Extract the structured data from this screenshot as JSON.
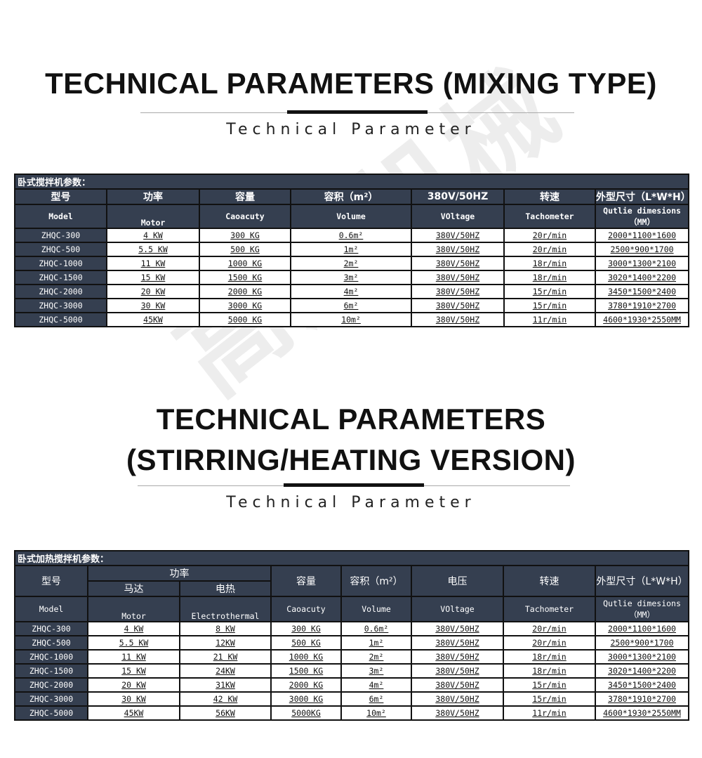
{
  "watermark": "高欣机械",
  "section1": {
    "title": "TECHNICAL PARAMETERS (MIXING TYPE)",
    "subtitle": "Technical Parameter",
    "table": {
      "caption": "卧式搅拌机参数：",
      "headers_cn": [
        "型号",
        "功率",
        "容量",
        "容积（m²）",
        "380V/50HZ",
        "转速",
        "外型尺寸（L*W*H）"
      ],
      "headers_en": [
        "Model",
        "Motor",
        "Caoacuty",
        "Volume",
        "VOltage",
        "Tachometer",
        "Qutlie dimesions（MM）"
      ],
      "rows": [
        [
          "ZHQC-300",
          "4 KW",
          "300 KG",
          "0.6m²",
          "380V/50HZ",
          "20r/min",
          "2000*1100*1600"
        ],
        [
          "ZHQC-500",
          "5.5 KW",
          "500 KG",
          "1m²",
          "380V/50HZ",
          "20r/min",
          "2500*900*1700"
        ],
        [
          "ZHQC-1000",
          "11 KW",
          "1000 KG",
          "2m²",
          "380V/50HZ",
          "18r/min",
          "3000*1300*2100"
        ],
        [
          "ZHQC-1500",
          "15 KW",
          "1500 KG",
          "3m²",
          "380V/50HZ",
          "18r/min",
          "3020*1400*2200"
        ],
        [
          "ZHQC-2000",
          "20 KW",
          "2000 KG",
          "4m²",
          "380V/50HZ",
          "15r/min",
          "3450*1500*2400"
        ],
        [
          "ZHQC-3000",
          "30 KW",
          "3000 KG",
          "6m²",
          "380V/50HZ",
          "15r/min",
          "3780*1910*2700"
        ],
        [
          "ZHQC-5000",
          "45KW",
          "5000 KG",
          "10m²",
          "380V/50HZ",
          "11r/min",
          "4600*1930*2550MM"
        ]
      ]
    }
  },
  "section2": {
    "title_line1": "TECHNICAL PARAMETERS",
    "title_line2": "(STIRRING/HEATING VERSION)",
    "subtitle": "Technical Parameter",
    "table": {
      "caption": "卧式加热搅拌机参数：",
      "h_model": "型号",
      "h_power": "功率",
      "h_motor": "马达",
      "h_heat": "电热",
      "h_cap": "容量",
      "h_vol": "容积（m²）",
      "h_volt": "电压",
      "h_speed": "转速",
      "h_dim": "外型尺寸（L*W*H）",
      "headers_en": [
        "Model",
        "Motor",
        "Electrothermal",
        "Caoacuty",
        "Volume",
        "VOltage",
        "Tachometer",
        "Qutlie dimesions（MM）"
      ],
      "rows": [
        [
          "ZHQC-300",
          "4 KW",
          "8 KW",
          "300 KG",
          "0.6m²",
          "380V/50HZ",
          "20r/min",
          "2000*1100*1600"
        ],
        [
          "ZHQC-500",
          "5.5 KW",
          "12KW",
          "500 KG",
          "1m²",
          "380V/50HZ",
          "20r/min",
          "2500*900*1700"
        ],
        [
          "ZHQC-1000",
          "11 KW",
          "21 KW",
          "1000 KG",
          "2m²",
          "380V/50HZ",
          "18r/min",
          "3000*1300*2100"
        ],
        [
          "ZHQC-1500",
          "15 KW",
          "24KW",
          "1500 KG",
          "3m²",
          "380V/50HZ",
          "18r/min",
          "3020*1400*2200"
        ],
        [
          "ZHQC-2000",
          "20 KW",
          "31KW",
          "2000 KG",
          "4m²",
          "380V/50HZ",
          "15r/min",
          "3450*1500*2400"
        ],
        [
          "ZHQC-3000",
          "30 KW",
          "42 KW",
          "3000 KG",
          "6m²",
          "380V/50HZ",
          "15r/min",
          "3780*1910*2700"
        ],
        [
          "ZHQC-5000",
          "45KW",
          "56KW",
          "5000KG",
          "10m²",
          "380V/50HZ",
          "11r/min",
          "4600*1930*2550MM"
        ]
      ]
    }
  }
}
